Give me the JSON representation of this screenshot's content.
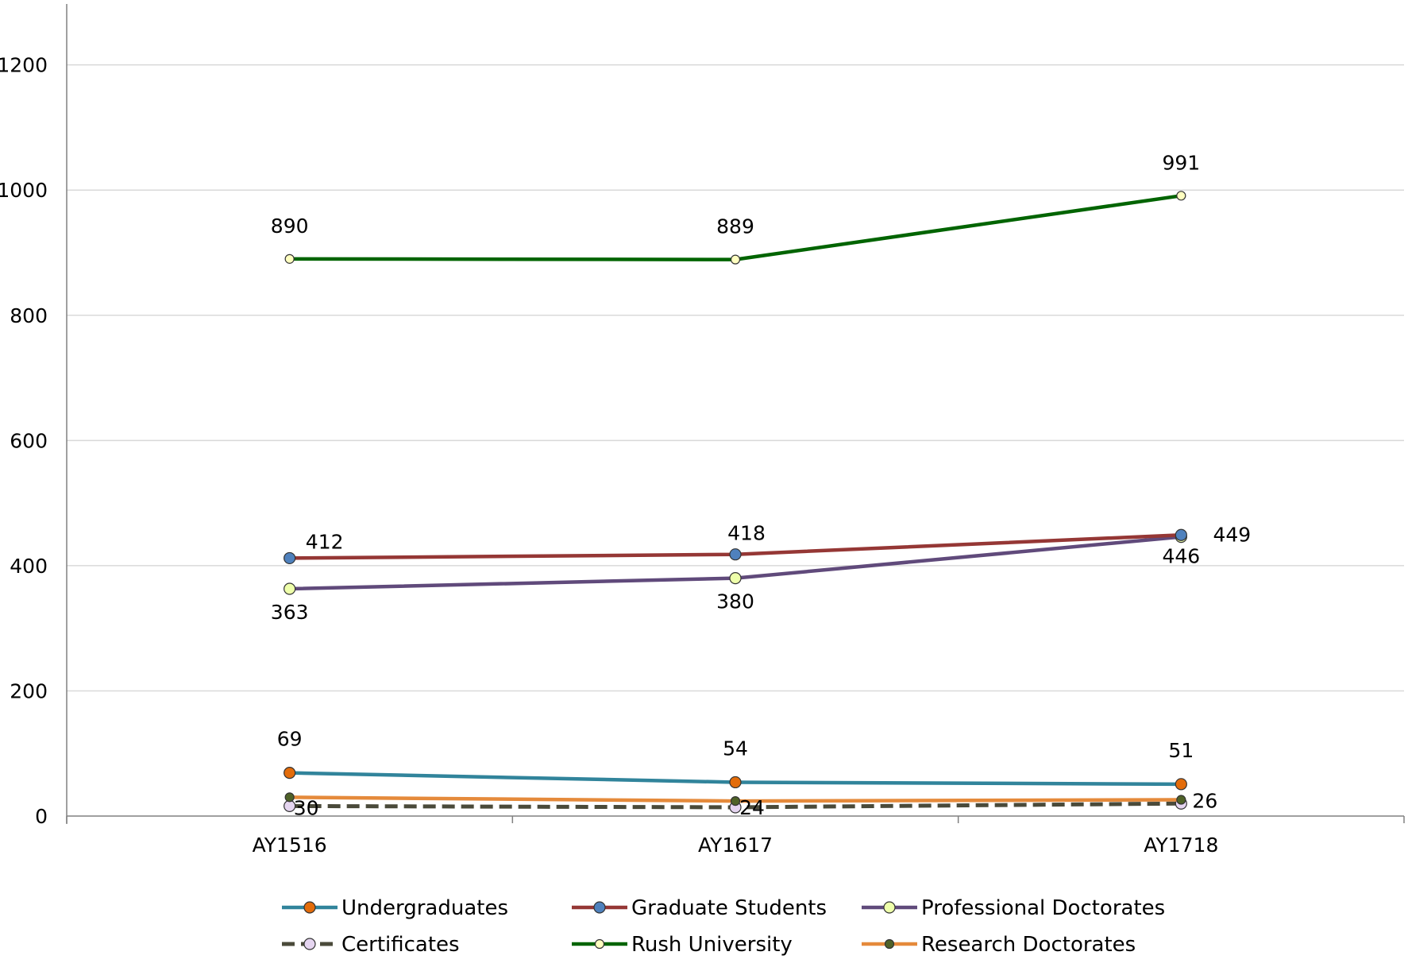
{
  "chart_data": {
    "type": "line",
    "title": "",
    "xlabel": "",
    "ylabel": "",
    "categories": [
      "AY1516",
      "AY1617",
      "AY1718"
    ],
    "ylim": [
      0,
      1200
    ],
    "yticks": [
      0,
      200,
      400,
      600,
      800,
      1000,
      1200
    ],
    "grid": true,
    "legend_position": "bottom",
    "series": [
      {
        "name": "Undergraduates",
        "values": [
          69,
          54,
          51
        ],
        "labels": [
          "69",
          "54",
          "51"
        ],
        "line_color": "#31849b",
        "marker_color": "#e36c0a",
        "dashed": false
      },
      {
        "name": "Graduate Students",
        "values": [
          412,
          418,
          449
        ],
        "labels": [
          "412",
          "418",
          "449"
        ],
        "line_color": "#953735",
        "marker_color": "#4f81bd",
        "dashed": false
      },
      {
        "name": "Professional Doctorates",
        "values": [
          363,
          380,
          446
        ],
        "labels": [
          "363",
          "380",
          "446"
        ],
        "line_color": "#604a7b",
        "marker_color": "#eeffaa",
        "dashed": false
      },
      {
        "name": "Certificates",
        "values": [
          16,
          14,
          20
        ],
        "labels": [
          "",
          "",
          ""
        ],
        "line_color": "#4a4a3a",
        "marker_color": "#e5d5f0",
        "dashed": true
      },
      {
        "name": "Rush University",
        "values": [
          890,
          889,
          991
        ],
        "labels": [
          "890",
          "889",
          "991"
        ],
        "line_color": "#006400",
        "marker_color": "#ffffc0",
        "dashed": false
      },
      {
        "name": "Research Doctorates",
        "values": [
          30,
          24,
          26
        ],
        "labels": [
          "30",
          "24",
          "26"
        ],
        "line_color": "#e58a3b",
        "marker_color": "#4f6228",
        "dashed": false
      }
    ]
  }
}
